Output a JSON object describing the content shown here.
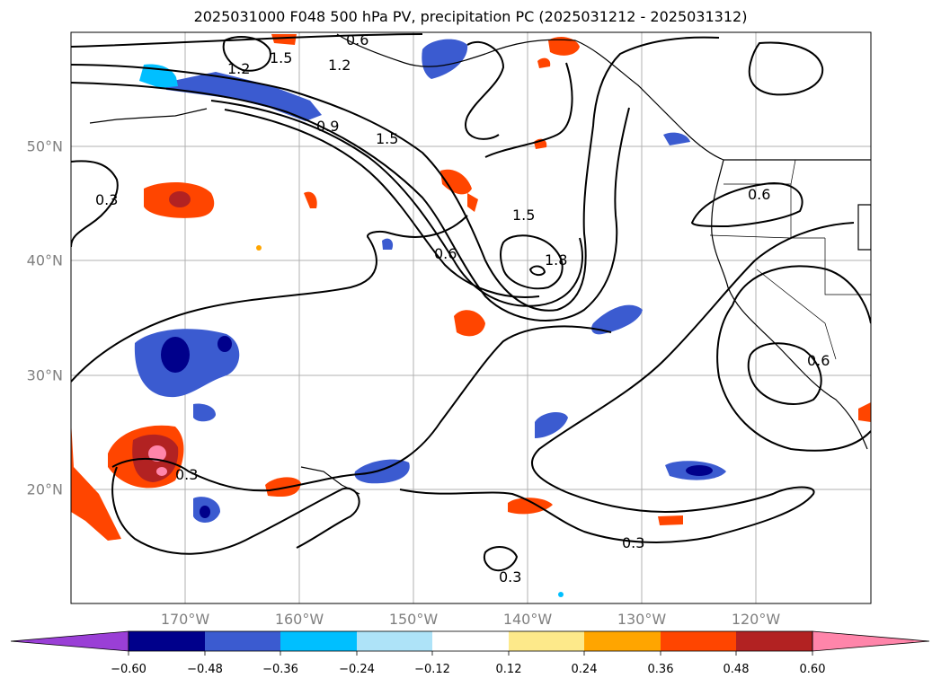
{
  "title": "2025031000 F048 500 hPa PV, precipitation PC (2025031212 - 2025031312)",
  "map": {
    "lon_labels": [
      "170°W",
      "160°W",
      "150°W",
      "140°W",
      "130°W",
      "120°W"
    ],
    "lat_labels": [
      "50°N",
      "40°N",
      "30°N",
      "20°N"
    ],
    "contour_labels": [
      "1.5",
      "1.2",
      "1.2",
      "0.6",
      "0.9",
      "1.5",
      "0.3",
      "1.5",
      "0.6",
      "1.8",
      "0.6",
      "0.6",
      "0.3",
      "0.3",
      "0.3"
    ]
  },
  "colorbar": {
    "ticks": [
      "−0.60",
      "−0.48",
      "−0.36",
      "−0.24",
      "−0.12",
      "0.12",
      "0.24",
      "0.36",
      "0.48",
      "0.60"
    ],
    "colors": [
      "#9a3fd6",
      "#00008b",
      "#3b5bd0",
      "#00bfff",
      "#aee3f8",
      "#ffffff",
      "#fde98a",
      "#ffa500",
      "#ff4500",
      "#b22222",
      "#ff85aa"
    ]
  }
}
